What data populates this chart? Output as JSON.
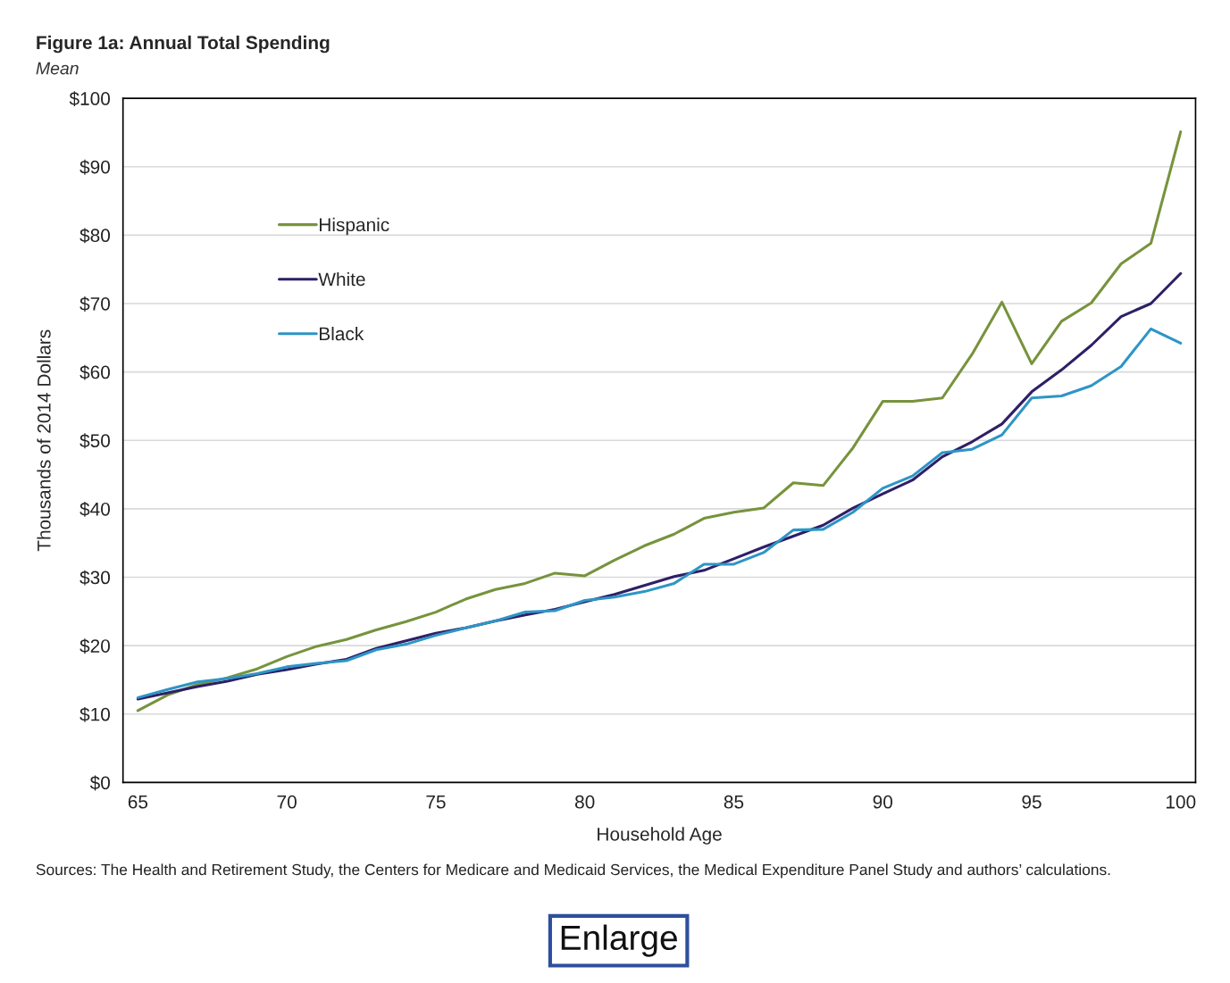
{
  "chart_data": {
    "type": "line",
    "title": "Figure 1a: Annual Total Spending",
    "subtitle": "Mean",
    "xlabel": "Household Age",
    "ylabel": "Thousands of 2014 Dollars",
    "x": [
      65,
      66,
      67,
      68,
      69,
      70,
      71,
      72,
      73,
      74,
      75,
      76,
      77,
      78,
      79,
      80,
      81,
      82,
      83,
      84,
      85,
      86,
      87,
      88,
      89,
      90,
      91,
      92,
      93,
      94,
      95,
      96,
      97,
      98,
      99,
      100
    ],
    "series": [
      {
        "name": "Hispanic",
        "color": "#77933c",
        "values": [
          10.5,
          12.8,
          14.3,
          15.3,
          16.6,
          18.4,
          19.9,
          20.9,
          22.3,
          23.5,
          24.9,
          26.8,
          28.2,
          29.1,
          30.6,
          30.2,
          32.5,
          34.6,
          36.3,
          38.6,
          39.5,
          40.1,
          43.8,
          43.4,
          48.9,
          55.7,
          55.7,
          56.2,
          62.6,
          70.2,
          61.2,
          67.4,
          70.1,
          75.8,
          78.8,
          95.1
        ]
      },
      {
        "name": "White",
        "color": "#2e1f66",
        "values": [
          12.2,
          13.1,
          14.0,
          14.8,
          15.8,
          16.5,
          17.3,
          18.0,
          19.6,
          20.7,
          21.8,
          22.6,
          23.6,
          24.5,
          25.3,
          26.4,
          27.5,
          28.8,
          30.1,
          31.0,
          32.7,
          34.4,
          36.0,
          37.6,
          40.1,
          42.2,
          44.2,
          47.6,
          49.8,
          52.4,
          57.1,
          60.3,
          63.9,
          68.1,
          70.0,
          74.4
        ]
      },
      {
        "name": "Black",
        "color": "#2e95c6",
        "values": [
          12.4,
          13.6,
          14.7,
          15.2,
          15.9,
          16.9,
          17.4,
          17.8,
          19.4,
          20.2,
          21.5,
          22.6,
          23.6,
          24.9,
          25.1,
          26.6,
          27.1,
          27.9,
          29.1,
          31.9,
          31.9,
          33.6,
          36.9,
          37.0,
          39.5,
          43.0,
          44.8,
          48.2,
          48.7,
          50.8,
          56.2,
          56.5,
          58.0,
          60.8,
          66.3,
          64.2
        ]
      }
    ],
    "xlim": [
      64.5,
      100.5
    ],
    "xticks": [
      65,
      70,
      75,
      80,
      85,
      90,
      95,
      100
    ],
    "ylim": [
      0,
      100
    ],
    "yticks": [
      {
        "value": 0,
        "label": "$0"
      },
      {
        "value": 10,
        "label": "$10"
      },
      {
        "value": 20,
        "label": "$20"
      },
      {
        "value": 30,
        "label": "$30"
      },
      {
        "value": 40,
        "label": "$40"
      },
      {
        "value": 50,
        "label": "$50"
      },
      {
        "value": 60,
        "label": "$60"
      },
      {
        "value": 70,
        "label": "$70"
      },
      {
        "value": 80,
        "label": "$80"
      },
      {
        "value": 90,
        "label": "$90"
      },
      {
        "value": 100,
        "label": "$100"
      }
    ],
    "grid": "y",
    "legend": "top left",
    "marker": "none",
    "line_style": "solid",
    "annotations": [
      "Sources: The Health and Retirement Study, the Centers for Medicare and Medicaid Services, the Medical Expenditure Panel Study and authors’ calculations.",
      "Enlarge"
    ]
  }
}
